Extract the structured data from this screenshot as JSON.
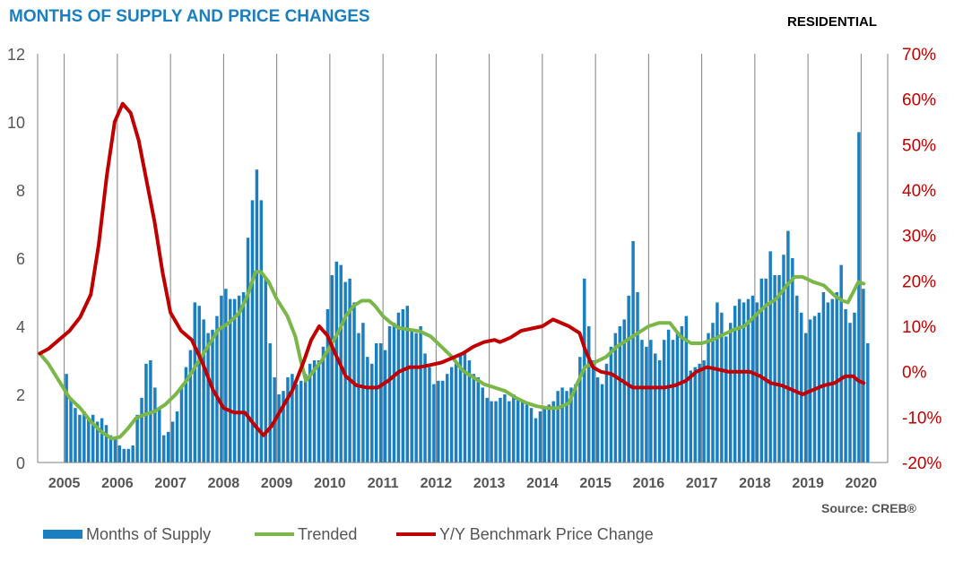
{
  "header": {
    "title": "MONTHS OF SUPPLY AND PRICE CHANGES",
    "badge": "RESIDENTIAL",
    "source": "Source: CREB®"
  },
  "colors": {
    "bars": "#1a7fc1",
    "trended": "#7ab648",
    "price_change": "#c00000",
    "left_axis_text": "#555555",
    "right_axis_text": "#c00000",
    "grid": "#808080"
  },
  "chart_data": {
    "type": "bar",
    "x_ticks": [
      "2005",
      "2006",
      "2007",
      "2008",
      "2009",
      "2010",
      "2011",
      "2012",
      "2013",
      "2014",
      "2015",
      "2016",
      "2017",
      "2018",
      "2019",
      "2020"
    ],
    "x_range": [
      2004.5,
      2020.5
    ],
    "ylim_left": [
      0,
      12
    ],
    "y_ticks_left": [
      0,
      2,
      4,
      6,
      8,
      10,
      12
    ],
    "ylim_right": [
      -20,
      70
    ],
    "y_ticks_right": [
      "-20%",
      "-10%",
      "0%",
      "10%",
      "20%",
      "30%",
      "40%",
      "50%",
      "60%",
      "70%"
    ],
    "grid": "vertical lines at year boundaries",
    "legend_position": "bottom-left",
    "legend": [
      "Months of Supply",
      "Trended",
      "Y/Y Benchmark Price Change"
    ],
    "series": [
      {
        "name": "Months of Supply",
        "type": "bar",
        "axis": "left",
        "start": "2005-01",
        "values": [
          2.6,
          1.9,
          1.6,
          1.4,
          1.5,
          1.3,
          1.4,
          1.2,
          1.3,
          1.1,
          0.8,
          0.7,
          0.5,
          0.4,
          0.4,
          0.5,
          1.4,
          1.9,
          2.9,
          3.0,
          2.2,
          1.6,
          0.8,
          0.9,
          1.2,
          1.5,
          2.2,
          2.8,
          3.3,
          4.7,
          4.6,
          4.2,
          3.8,
          3.9,
          4.3,
          4.9,
          5.1,
          4.8,
          4.8,
          4.9,
          5.0,
          6.6,
          7.7,
          8.6,
          7.7,
          5.4,
          3.5,
          2.5,
          2.0,
          2.1,
          2.5,
          2.6,
          2.3,
          2.4,
          2.6,
          2.9,
          3.0,
          3.0,
          3.4,
          4.5,
          5.5,
          5.9,
          5.8,
          5.3,
          5.4,
          4.7,
          3.8,
          4.1,
          3.1,
          2.9,
          3.5,
          3.5,
          3.3,
          4.0,
          4.1,
          4.4,
          4.5,
          4.6,
          3.9,
          3.8,
          4.0,
          3.2,
          2.8,
          2.3,
          2.4,
          2.4,
          2.6,
          2.8,
          2.9,
          3.2,
          3.2,
          3.0,
          2.6,
          2.5,
          2.2,
          1.9,
          1.8,
          1.8,
          1.9,
          2.0,
          1.8,
          2.0,
          1.9,
          1.8,
          1.7,
          1.6,
          1.3,
          1.5,
          1.6,
          1.7,
          1.8,
          2.1,
          2.2,
          2.1,
          2.2,
          2.3,
          3.1,
          5.4,
          4.0,
          3.0,
          2.5,
          2.3,
          2.9,
          3.4,
          3.8,
          4.0,
          4.2,
          4.9,
          6.5,
          5.0,
          3.6,
          3.4,
          3.6,
          3.2,
          3.0,
          3.6,
          3.9,
          3.6,
          3.8,
          4.0,
          4.3,
          2.7,
          2.8,
          2.9,
          3.0,
          3.8,
          4.1,
          4.7,
          4.4,
          3.7,
          4.1,
          4.6,
          4.8,
          4.7,
          4.8,
          4.9,
          4.7,
          5.4,
          5.4,
          6.2,
          5.5,
          5.5,
          6.1,
          6.8,
          6.0,
          4.9,
          4.4,
          3.8,
          4.2,
          4.3,
          4.4,
          5.0,
          4.7,
          4.8,
          5.0,
          5.8,
          4.5,
          4.1,
          4.4,
          9.7,
          5.1,
          3.5
        ]
      },
      {
        "name": "Trended",
        "type": "line",
        "axis": "left",
        "points": [
          [
            2004.54,
            3.2
          ],
          [
            2004.7,
            2.9
          ],
          [
            2004.9,
            2.4
          ],
          [
            2005.1,
            1.9
          ],
          [
            2005.3,
            1.6
          ],
          [
            2005.5,
            1.2
          ],
          [
            2005.7,
            0.9
          ],
          [
            2005.9,
            0.7
          ],
          [
            2006.05,
            0.75
          ],
          [
            2006.2,
            1.0
          ],
          [
            2006.35,
            1.3
          ],
          [
            2006.5,
            1.4
          ],
          [
            2006.7,
            1.5
          ],
          [
            2006.9,
            1.7
          ],
          [
            2007.1,
            2.0
          ],
          [
            2007.3,
            2.4
          ],
          [
            2007.5,
            2.9
          ],
          [
            2007.7,
            3.4
          ],
          [
            2007.9,
            3.9
          ],
          [
            2008.1,
            4.1
          ],
          [
            2008.3,
            4.4
          ],
          [
            2008.45,
            4.9
          ],
          [
            2008.6,
            5.6
          ],
          [
            2008.7,
            5.6
          ],
          [
            2008.85,
            5.3
          ],
          [
            2009.0,
            4.8
          ],
          [
            2009.2,
            4.3
          ],
          [
            2009.35,
            3.7
          ],
          [
            2009.45,
            3.0
          ],
          [
            2009.55,
            2.4
          ],
          [
            2009.7,
            2.7
          ],
          [
            2009.85,
            3.0
          ],
          [
            2010.0,
            3.4
          ],
          [
            2010.15,
            3.8
          ],
          [
            2010.3,
            4.3
          ],
          [
            2010.45,
            4.6
          ],
          [
            2010.6,
            4.75
          ],
          [
            2010.75,
            4.75
          ],
          [
            2010.85,
            4.6
          ],
          [
            2011.0,
            4.3
          ],
          [
            2011.15,
            4.1
          ],
          [
            2011.3,
            3.95
          ],
          [
            2011.5,
            3.9
          ],
          [
            2011.7,
            3.85
          ],
          [
            2011.9,
            3.7
          ],
          [
            2012.1,
            3.4
          ],
          [
            2012.3,
            3.1
          ],
          [
            2012.5,
            2.7
          ],
          [
            2012.7,
            2.5
          ],
          [
            2012.9,
            2.3
          ],
          [
            2013.1,
            2.2
          ],
          [
            2013.3,
            2.1
          ],
          [
            2013.5,
            1.9
          ],
          [
            2013.7,
            1.75
          ],
          [
            2013.9,
            1.65
          ],
          [
            2014.1,
            1.6
          ],
          [
            2014.3,
            1.6
          ],
          [
            2014.5,
            1.75
          ],
          [
            2014.65,
            2.3
          ],
          [
            2014.8,
            2.8
          ],
          [
            2015.0,
            2.95
          ],
          [
            2015.2,
            3.1
          ],
          [
            2015.4,
            3.4
          ],
          [
            2015.6,
            3.6
          ],
          [
            2015.8,
            3.8
          ],
          [
            2016.0,
            4.0
          ],
          [
            2016.2,
            4.1
          ],
          [
            2016.4,
            4.1
          ],
          [
            2016.6,
            3.7
          ],
          [
            2016.8,
            3.5
          ],
          [
            2017.0,
            3.5
          ],
          [
            2017.2,
            3.6
          ],
          [
            2017.4,
            3.75
          ],
          [
            2017.6,
            3.9
          ],
          [
            2017.8,
            4.0
          ],
          [
            2018.0,
            4.3
          ],
          [
            2018.2,
            4.6
          ],
          [
            2018.4,
            4.8
          ],
          [
            2018.6,
            5.2
          ],
          [
            2018.75,
            5.45
          ],
          [
            2018.9,
            5.45
          ],
          [
            2019.1,
            5.3
          ],
          [
            2019.3,
            5.2
          ],
          [
            2019.5,
            4.9
          ],
          [
            2019.65,
            4.75
          ],
          [
            2019.75,
            4.7
          ],
          [
            2019.85,
            5.0
          ],
          [
            2019.95,
            5.3
          ],
          [
            2020.05,
            5.25
          ]
        ]
      },
      {
        "name": "Y/Y Benchmark Price Change",
        "type": "line",
        "axis": "right",
        "points": [
          [
            2004.54,
            4
          ],
          [
            2004.7,
            5
          ],
          [
            2004.9,
            7
          ],
          [
            2005.1,
            9
          ],
          [
            2005.3,
            12
          ],
          [
            2005.5,
            17
          ],
          [
            2005.65,
            28
          ],
          [
            2005.8,
            43
          ],
          [
            2005.95,
            55
          ],
          [
            2006.1,
            59
          ],
          [
            2006.25,
            57
          ],
          [
            2006.4,
            51
          ],
          [
            2006.55,
            42
          ],
          [
            2006.7,
            33
          ],
          [
            2006.85,
            22
          ],
          [
            2007.0,
            13
          ],
          [
            2007.2,
            9
          ],
          [
            2007.4,
            7
          ],
          [
            2007.6,
            2
          ],
          [
            2007.8,
            -4
          ],
          [
            2008.0,
            -8
          ],
          [
            2008.2,
            -9
          ],
          [
            2008.4,
            -9
          ],
          [
            2008.6,
            -12
          ],
          [
            2008.75,
            -14
          ],
          [
            2008.9,
            -12
          ],
          [
            2009.1,
            -8
          ],
          [
            2009.3,
            -4
          ],
          [
            2009.5,
            2
          ],
          [
            2009.65,
            7
          ],
          [
            2009.8,
            10
          ],
          [
            2009.95,
            8
          ],
          [
            2010.1,
            4
          ],
          [
            2010.3,
            -1
          ],
          [
            2010.5,
            -3
          ],
          [
            2010.7,
            -3.5
          ],
          [
            2010.9,
            -3.5
          ],
          [
            2011.1,
            -2
          ],
          [
            2011.3,
            0
          ],
          [
            2011.5,
            1
          ],
          [
            2011.7,
            1
          ],
          [
            2011.9,
            1.5
          ],
          [
            2012.1,
            2
          ],
          [
            2012.3,
            3
          ],
          [
            2012.5,
            4
          ],
          [
            2012.7,
            5.5
          ],
          [
            2012.9,
            6.5
          ],
          [
            2013.1,
            7
          ],
          [
            2013.2,
            6.5
          ],
          [
            2013.4,
            7.5
          ],
          [
            2013.6,
            9
          ],
          [
            2013.8,
            9.5
          ],
          [
            2014.0,
            10
          ],
          [
            2014.2,
            11.5
          ],
          [
            2014.3,
            11
          ],
          [
            2014.5,
            10
          ],
          [
            2014.7,
            8.5
          ],
          [
            2014.8,
            5
          ],
          [
            2014.95,
            1
          ],
          [
            2015.1,
            0
          ],
          [
            2015.3,
            -0.5
          ],
          [
            2015.5,
            -2
          ],
          [
            2015.7,
            -3.5
          ],
          [
            2015.9,
            -3.5
          ],
          [
            2016.1,
            -3.5
          ],
          [
            2016.3,
            -3.5
          ],
          [
            2016.5,
            -3
          ],
          [
            2016.7,
            -2
          ],
          [
            2016.9,
            0
          ],
          [
            2017.1,
            1
          ],
          [
            2017.3,
            0.5
          ],
          [
            2017.5,
            0
          ],
          [
            2017.7,
            0
          ],
          [
            2017.9,
            0
          ],
          [
            2018.1,
            -1
          ],
          [
            2018.3,
            -2.5
          ],
          [
            2018.5,
            -3
          ],
          [
            2018.7,
            -4
          ],
          [
            2018.9,
            -5
          ],
          [
            2019.1,
            -4
          ],
          [
            2019.3,
            -3
          ],
          [
            2019.5,
            -2.5
          ],
          [
            2019.7,
            -1
          ],
          [
            2019.85,
            -1
          ],
          [
            2019.95,
            -2
          ],
          [
            2020.05,
            -2.5
          ]
        ]
      }
    ]
  }
}
